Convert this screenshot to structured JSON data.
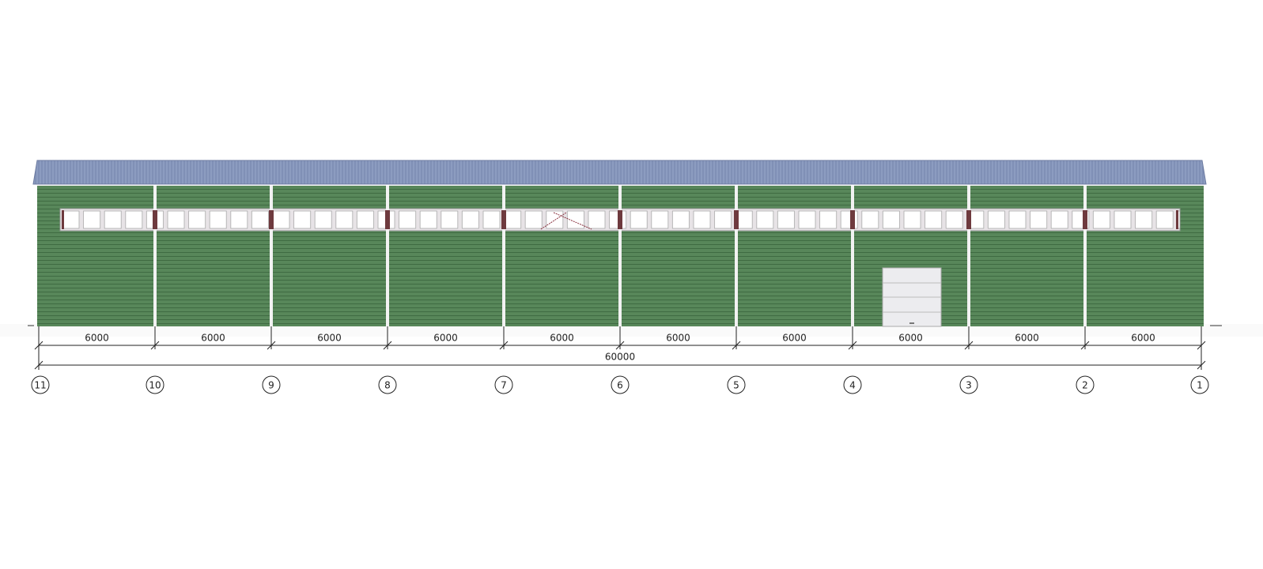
{
  "dimensions": {
    "spans": [
      "6000",
      "6000",
      "6000",
      "6000",
      "6000",
      "6000",
      "6000",
      "6000",
      "6000",
      "6000"
    ],
    "total": "60000"
  },
  "axes": [
    "11",
    "10",
    "9",
    "8",
    "7",
    "6",
    "5",
    "4",
    "3",
    "2",
    "1"
  ]
}
